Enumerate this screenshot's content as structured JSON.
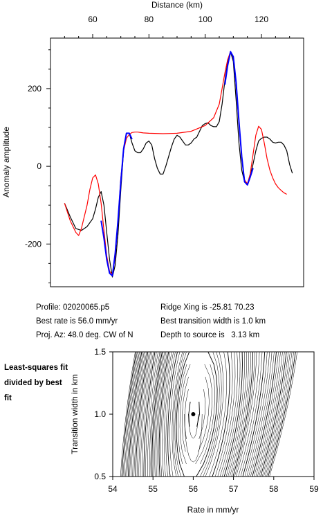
{
  "chart_data": [
    {
      "type": "line",
      "xlabel": "Distance (km)",
      "ylabel": "Anomaly amplitude",
      "xlim": [
        45,
        135
      ],
      "ylim": [
        -310,
        330
      ],
      "x_ticks": [
        60,
        80,
        100,
        120
      ],
      "y_ticks": [
        -200,
        0,
        200
      ],
      "x_axis_position": "top",
      "grid": false,
      "series": [
        {
          "color": "#000000",
          "points": [
            [
              50,
              -95
            ],
            [
              52,
              -130
            ],
            [
              54,
              -160
            ],
            [
              56,
              -165
            ],
            [
              58,
              -155
            ],
            [
              60,
              -135
            ],
            [
              61,
              -110
            ],
            [
              62,
              -80
            ],
            [
              63,
              -65
            ],
            [
              64,
              -100
            ],
            [
              65,
              -170
            ],
            [
              66,
              -240
            ],
            [
              67,
              -285
            ],
            [
              68,
              -255
            ],
            [
              69,
              -175
            ],
            [
              70,
              -60
            ],
            [
              71,
              40
            ],
            [
              72,
              85
            ],
            [
              73,
              85
            ],
            [
              74,
              60
            ],
            [
              75,
              40
            ],
            [
              76,
              35
            ],
            [
              77,
              35
            ],
            [
              78,
              45
            ],
            [
              79,
              60
            ],
            [
              80,
              65
            ],
            [
              81,
              55
            ],
            [
              82,
              20
            ],
            [
              83,
              -5
            ],
            [
              84,
              -20
            ],
            [
              85,
              -20
            ],
            [
              86,
              0
            ],
            [
              87,
              25
            ],
            [
              88,
              50
            ],
            [
              89,
              70
            ],
            [
              90,
              80
            ],
            [
              91,
              75
            ],
            [
              92,
              65
            ],
            [
              93,
              55
            ],
            [
              94,
              55
            ],
            [
              95,
              60
            ],
            [
              96,
              70
            ],
            [
              97,
              75
            ],
            [
              98,
              90
            ],
            [
              99,
              105
            ],
            [
              100,
              110
            ],
            [
              101,
              112
            ],
            [
              102,
              105
            ],
            [
              103,
              102
            ],
            [
              104,
              102
            ],
            [
              105,
              115
            ],
            [
              106,
              160
            ],
            [
              107,
              220
            ],
            [
              108,
              270
            ],
            [
              109,
              295
            ],
            [
              110,
              270
            ],
            [
              111,
              170
            ],
            [
              112,
              60
            ],
            [
              113,
              -10
            ],
            [
              114,
              -40
            ],
            [
              115,
              -45
            ],
            [
              116,
              -25
            ],
            [
              117,
              5
            ],
            [
              118,
              40
            ],
            [
              119,
              65
            ],
            [
              120,
              72
            ],
            [
              121,
              75
            ],
            [
              122,
              75
            ],
            [
              123,
              70
            ],
            [
              124,
              62
            ],
            [
              125,
              60
            ],
            [
              126,
              62
            ],
            [
              127,
              62
            ],
            [
              128,
              55
            ],
            [
              129,
              40
            ],
            [
              130,
              5
            ],
            [
              131,
              -18
            ]
          ]
        },
        {
          "color": "#ff0000",
          "points": [
            [
              50,
              -95
            ],
            [
              52,
              -140
            ],
            [
              54,
              -170
            ],
            [
              55,
              -178
            ],
            [
              56,
              -160
            ],
            [
              57,
              -130
            ],
            [
              58,
              -100
            ],
            [
              59,
              -60
            ],
            [
              60,
              -30
            ],
            [
              61,
              -22
            ],
            [
              62,
              -45
            ],
            [
              63,
              -95
            ],
            [
              64,
              -165
            ],
            [
              65,
              -230
            ],
            [
              66,
              -270
            ],
            [
              67,
              -278
            ],
            [
              68,
              -235
            ],
            [
              69,
              -140
            ],
            [
              70,
              -30
            ],
            [
              71,
              40
            ],
            [
              72,
              72
            ],
            [
              73,
              82
            ],
            [
              74,
              87
            ],
            [
              75,
              88
            ],
            [
              76,
              88
            ],
            [
              78,
              86
            ],
            [
              80,
              85
            ],
            [
              85,
              84
            ],
            [
              90,
              85
            ],
            [
              95,
              90
            ],
            [
              100,
              105
            ],
            [
              103,
              125
            ],
            [
              105,
              160
            ],
            [
              106,
              200
            ],
            [
              107,
              240
            ],
            [
              108,
              275
            ],
            [
              109,
              295
            ],
            [
              110,
              280
            ],
            [
              111,
              210
            ],
            [
              112,
              110
            ],
            [
              113,
              20
            ],
            [
              114,
              -35
            ],
            [
              115,
              -45
            ],
            [
              116,
              -20
            ],
            [
              117,
              30
            ],
            [
              118,
              80
            ],
            [
              119,
              103
            ],
            [
              120,
              95
            ],
            [
              121,
              60
            ],
            [
              122,
              20
            ],
            [
              123,
              -10
            ],
            [
              124,
              -30
            ],
            [
              125,
              -45
            ],
            [
              126,
              -55
            ],
            [
              127,
              -62
            ],
            [
              128,
              -68
            ],
            [
              129,
              -72
            ]
          ]
        },
        {
          "color": "#0000ff",
          "points": [
            [
              63,
              -140
            ],
            [
              64,
              -185
            ],
            [
              65,
              -240
            ],
            [
              66,
              -275
            ],
            [
              67,
              -282
            ],
            [
              68,
              -225
            ],
            [
              69,
              -140
            ],
            [
              70,
              -40
            ],
            [
              71,
              45
            ],
            [
              72,
              85
            ],
            [
              73,
              85
            ],
            [
              74,
              70
            ],
            [
              107,
              210
            ],
            [
              108,
              260
            ],
            [
              109,
              295
            ],
            [
              110,
              282
            ],
            [
              111,
              215
            ],
            [
              112,
              115
            ],
            [
              113,
              25
            ],
            [
              114,
              -40
            ],
            [
              115,
              -48
            ],
            [
              116,
              -28
            ],
            [
              117,
              -5
            ]
          ]
        }
      ],
      "annotations": {
        "profile": "Profile: 02020065.p5",
        "best_rate": "Best rate is 56.0 mm/yr",
        "proj_az": "Proj. Az: 48.0 deg. CW of N",
        "ridge_xing": "Ridge Xing is -25.81 70.23",
        "best_transition": "Best transition width is 1.0 km",
        "depth": "Depth to source is   3.13 km"
      }
    },
    {
      "type": "contour",
      "title_note": "Least-squares fit divided by best fit",
      "xlabel": "Rate in mm/yr",
      "ylabel": "Transition width in km",
      "xlim": [
        54,
        59
      ],
      "ylim": [
        0.5,
        1.5
      ],
      "x_ticks": [
        54,
        55,
        56,
        57,
        58,
        59
      ],
      "y_ticks": [
        0.5,
        1.0,
        1.5
      ],
      "best_fit_point": [
        56.0,
        1.0
      ]
    }
  ]
}
